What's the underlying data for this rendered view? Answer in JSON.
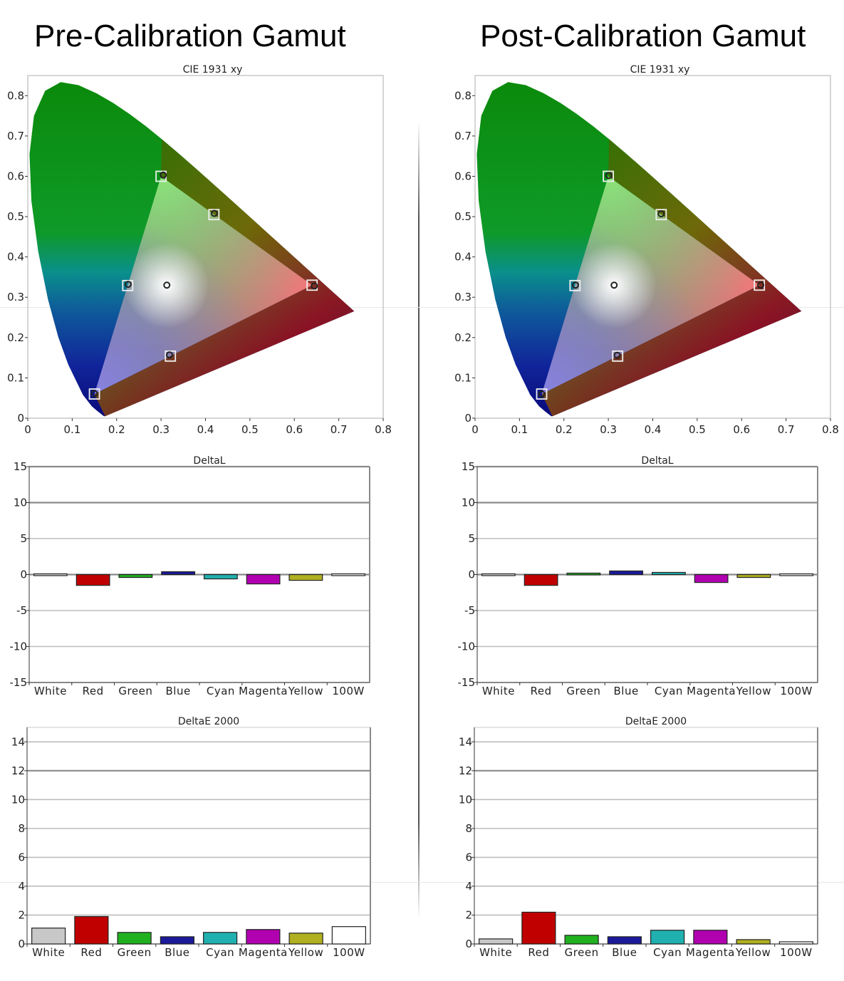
{
  "headings": {
    "left": "Pre-Calibration Gamut",
    "right": "Post-Calibration Gamut"
  },
  "chart_data": [
    {
      "panel": "pre",
      "type": "scatter",
      "title": "CIE 1931 xy",
      "xlim": [
        0,
        0.8
      ],
      "ylim": [
        0,
        0.85
      ],
      "x_ticks": [
        "0",
        "0.1",
        "0.2",
        "0.3",
        "0.4",
        "0.5",
        "0.6",
        "0.7",
        "0.8"
      ],
      "y_ticks": [
        "0",
        "0.1",
        "0.2",
        "0.3",
        "0.4",
        "0.5",
        "0.6",
        "0.7",
        "0.8"
      ],
      "targets": [
        {
          "name": "Red",
          "x": 0.64,
          "y": 0.33
        },
        {
          "name": "Green",
          "x": 0.3,
          "y": 0.6
        },
        {
          "name": "Blue",
          "x": 0.15,
          "y": 0.06
        },
        {
          "name": "Cyan",
          "x": 0.225,
          "y": 0.329
        },
        {
          "name": "Magenta",
          "x": 0.321,
          "y": 0.154
        },
        {
          "name": "Yellow",
          "x": 0.419,
          "y": 0.505
        },
        {
          "name": "White",
          "x": 0.3127,
          "y": 0.329
        }
      ],
      "measured": [
        {
          "name": "Red",
          "x": 0.645,
          "y": 0.328
        },
        {
          "name": "Green",
          "x": 0.305,
          "y": 0.603
        },
        {
          "name": "Blue",
          "x": 0.15,
          "y": 0.061
        },
        {
          "name": "Cyan",
          "x": 0.226,
          "y": 0.332
        },
        {
          "name": "Magenta",
          "x": 0.319,
          "y": 0.157
        },
        {
          "name": "Yellow",
          "x": 0.42,
          "y": 0.508
        },
        {
          "name": "White",
          "x": 0.313,
          "y": 0.33
        }
      ],
      "colors": {
        "red": "#e60000",
        "green": "#22cc00",
        "blue": "#1a10c8",
        "white": "#ffffff",
        "locus_green": "#1a9a10",
        "locus_blue": "#0a1a9c"
      }
    },
    {
      "panel": "post",
      "type": "scatter",
      "title": "CIE 1931 xy",
      "xlim": [
        0,
        0.8
      ],
      "ylim": [
        0,
        0.85
      ],
      "x_ticks": [
        "0",
        "0.1",
        "0.2",
        "0.3",
        "0.4",
        "0.5",
        "0.6",
        "0.7",
        "0.8"
      ],
      "y_ticks": [
        "0",
        "0.1",
        "0.2",
        "0.3",
        "0.4",
        "0.5",
        "0.6",
        "0.7",
        "0.8"
      ],
      "targets": [
        {
          "name": "Red",
          "x": 0.64,
          "y": 0.33
        },
        {
          "name": "Green",
          "x": 0.3,
          "y": 0.6
        },
        {
          "name": "Blue",
          "x": 0.15,
          "y": 0.06
        },
        {
          "name": "Cyan",
          "x": 0.225,
          "y": 0.329
        },
        {
          "name": "Magenta",
          "x": 0.321,
          "y": 0.154
        },
        {
          "name": "Yellow",
          "x": 0.419,
          "y": 0.505
        },
        {
          "name": "White",
          "x": 0.3127,
          "y": 0.329
        }
      ],
      "measured": [
        {
          "name": "Red",
          "x": 0.643,
          "y": 0.33
        },
        {
          "name": "Green",
          "x": 0.301,
          "y": 0.602
        },
        {
          "name": "Blue",
          "x": 0.15,
          "y": 0.06
        },
        {
          "name": "Cyan",
          "x": 0.226,
          "y": 0.33
        },
        {
          "name": "Magenta",
          "x": 0.32,
          "y": 0.156
        },
        {
          "name": "Yellow",
          "x": 0.419,
          "y": 0.507
        },
        {
          "name": "White",
          "x": 0.313,
          "y": 0.33
        }
      ],
      "colors": {
        "red": "#e60000",
        "green": "#22cc00",
        "blue": "#1a10c8",
        "white": "#ffffff",
        "locus_green": "#1a9a10",
        "locus_blue": "#0a1a9c"
      }
    },
    {
      "panel": "pre",
      "type": "bar",
      "title": "DeltaL",
      "categories": [
        "White",
        "Red",
        "Green",
        "Blue",
        "Cyan",
        "Magenta",
        "Yellow",
        "100W"
      ],
      "values": [
        0.1,
        -1.5,
        -0.4,
        0.4,
        -0.6,
        -1.3,
        -0.8,
        0.1
      ],
      "colors": [
        "#d8d8d8",
        "#c00000",
        "#20b020",
        "#1a1a9a",
        "#20b0b0",
        "#b000b0",
        "#b0b020",
        "#f4f4f4"
      ],
      "ylim": [
        -15,
        15
      ],
      "y_ticks": [
        "-15",
        "-10",
        "-5",
        "0",
        "5",
        "10",
        "15"
      ]
    },
    {
      "panel": "post",
      "type": "bar",
      "title": "DeltaL",
      "categories": [
        "White",
        "Red",
        "Green",
        "Blue",
        "Cyan",
        "Magenta",
        "Yellow",
        "100W"
      ],
      "values": [
        0.1,
        -1.5,
        0.2,
        0.5,
        0.3,
        -1.1,
        -0.4,
        0.1
      ],
      "colors": [
        "#d8d8d8",
        "#c00000",
        "#20b020",
        "#1a1a9a",
        "#20b0b0",
        "#b000b0",
        "#b0b020",
        "#f4f4f4"
      ],
      "ylim": [
        -15,
        15
      ],
      "y_ticks": [
        "-15",
        "-10",
        "-5",
        "0",
        "5",
        "10",
        "15"
      ]
    },
    {
      "panel": "pre",
      "type": "bar",
      "title": "DeltaE 2000",
      "categories": [
        "White",
        "Red",
        "Green",
        "Blue",
        "Cyan",
        "Magenta",
        "Yellow",
        "100W"
      ],
      "values": [
        1.1,
        1.9,
        0.8,
        0.5,
        0.8,
        1.0,
        0.75,
        1.2
      ],
      "colors": [
        "#c8c8c8",
        "#c00000",
        "#20b020",
        "#1a1a9a",
        "#20b0b0",
        "#b000b0",
        "#b0b020",
        "#ffffff"
      ],
      "ylim": [
        0,
        15
      ],
      "y_ticks": [
        "0",
        "2",
        "4",
        "6",
        "8",
        "10",
        "12",
        "14"
      ]
    },
    {
      "panel": "post",
      "type": "bar",
      "title": "DeltaE 2000",
      "categories": [
        "White",
        "Red",
        "Green",
        "Blue",
        "Cyan",
        "Magenta",
        "Yellow",
        "100W"
      ],
      "values": [
        0.35,
        2.2,
        0.6,
        0.5,
        0.95,
        0.95,
        0.3,
        0.15
      ],
      "colors": [
        "#c8c8c8",
        "#c00000",
        "#20b020",
        "#1a1a9a",
        "#20b0b0",
        "#b000b0",
        "#b0b020",
        "#ffffff"
      ],
      "ylim": [
        0,
        15
      ],
      "y_ticks": [
        "0",
        "2",
        "4",
        "6",
        "8",
        "10",
        "12",
        "14"
      ]
    }
  ]
}
